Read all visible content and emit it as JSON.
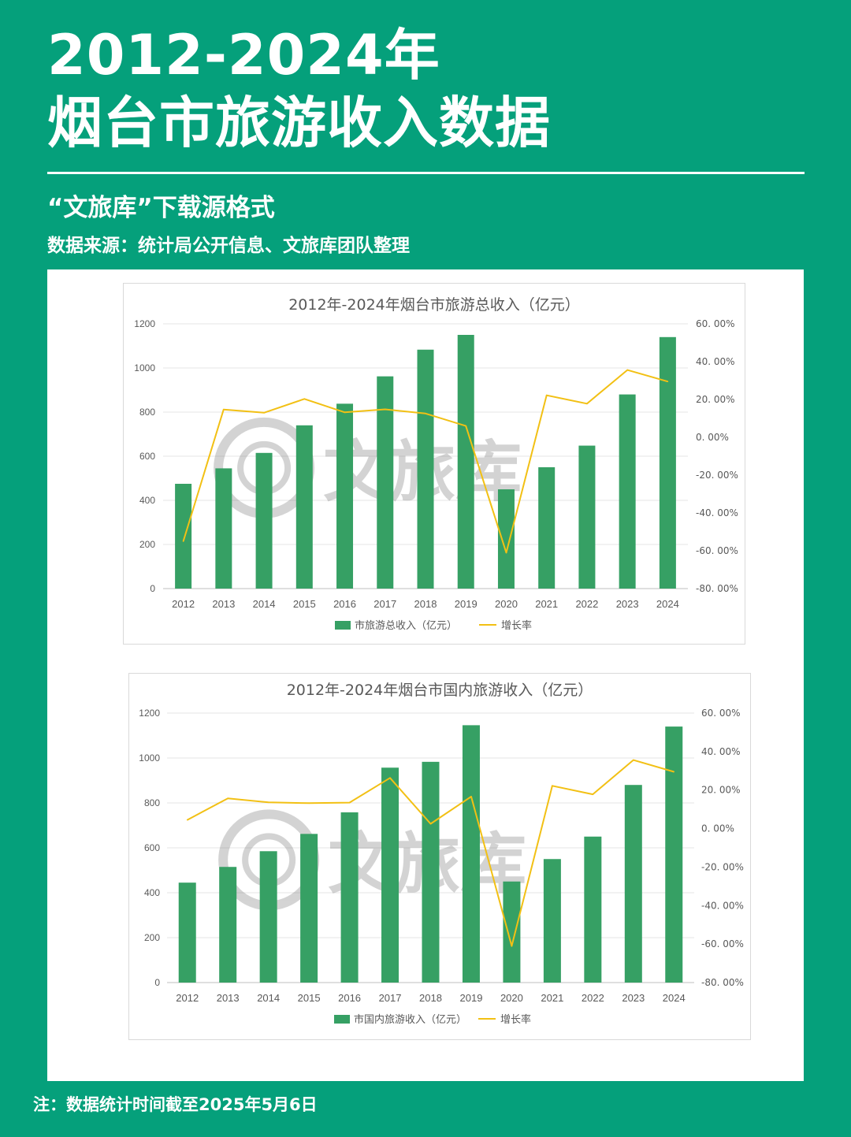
{
  "header": {
    "title_line1": "2012-2024年",
    "title_line2": "烟台市旅游收入数据",
    "subtitle": "“文旅库”下载源格式",
    "source": "数据来源：统计局公开信息、文旅库团队整理"
  },
  "footer": {
    "note": "注：数据统计时间截至2025年5月6日"
  },
  "watermark": {
    "text": "文旅库"
  },
  "colors": {
    "background": "#05a07b",
    "bar": "#36a064",
    "line": "#f2c014"
  },
  "chart_data": [
    {
      "type": "bar",
      "title": "2012年-2024年烟台市旅游总收入（亿元）",
      "categories": [
        "2012",
        "2013",
        "2014",
        "2015",
        "2016",
        "2017",
        "2018",
        "2019",
        "2020",
        "2021",
        "2022",
        "2023",
        "2024"
      ],
      "series": [
        {
          "name": "市旅游总收入（亿元）",
          "type": "bar",
          "axis": "left",
          "values": [
            475,
            545,
            615,
            740,
            838,
            962,
            1083,
            1150,
            450,
            550,
            648,
            880,
            1140
          ]
        },
        {
          "name": "增长率",
          "type": "line",
          "axis": "right",
          "values": [
            -55.0,
            14.7,
            13.0,
            20.3,
            13.2,
            14.8,
            12.6,
            6.0,
            -61.0,
            22.2,
            17.8,
            35.6,
            29.5
          ]
        }
      ],
      "ylim_left": [
        0,
        1200
      ],
      "ylim_right": [
        -80,
        60
      ],
      "left_ticks": [
        "0",
        "200",
        "400",
        "600",
        "800",
        "1000",
        "1200"
      ],
      "right_ticks": [
        "-80. 00%",
        "-60. 00%",
        "-40. 00%",
        "-20. 00%",
        "0. 00%",
        "20. 00%",
        "40. 00%",
        "60. 00%"
      ],
      "legend": [
        "市旅游总收入（亿元）",
        "增长率"
      ],
      "legend_position": "bottom",
      "grid": true
    },
    {
      "type": "bar",
      "title": "2012年-2024年烟台市国内旅游收入（亿元）",
      "categories": [
        "2012",
        "2013",
        "2014",
        "2015",
        "2016",
        "2017",
        "2018",
        "2019",
        "2020",
        "2021",
        "2022",
        "2023",
        "2024"
      ],
      "series": [
        {
          "name": "市国内旅游收入（亿元）",
          "type": "bar",
          "axis": "left",
          "values": [
            445,
            515,
            585,
            662,
            758,
            957,
            983,
            1146,
            450,
            550,
            650,
            880,
            1140
          ]
        },
        {
          "name": "增长率",
          "type": "line",
          "axis": "right",
          "values": [
            4.5,
            15.7,
            13.6,
            13.2,
            13.5,
            26.3,
            2.5,
            16.6,
            -61.0,
            22.2,
            17.8,
            35.6,
            29.5
          ]
        }
      ],
      "ylim_left": [
        0,
        1200
      ],
      "ylim_right": [
        -80,
        60
      ],
      "left_ticks": [
        "0",
        "200",
        "400",
        "600",
        "800",
        "1000",
        "1200"
      ],
      "right_ticks": [
        "-80. 00%",
        "-60. 00%",
        "-40. 00%",
        "-20. 00%",
        "0. 00%",
        "20. 00%",
        "40. 00%",
        "60. 00%"
      ],
      "legend": [
        "市国内旅游收入（亿元）",
        "增长率"
      ],
      "legend_position": "bottom",
      "grid": true
    }
  ]
}
